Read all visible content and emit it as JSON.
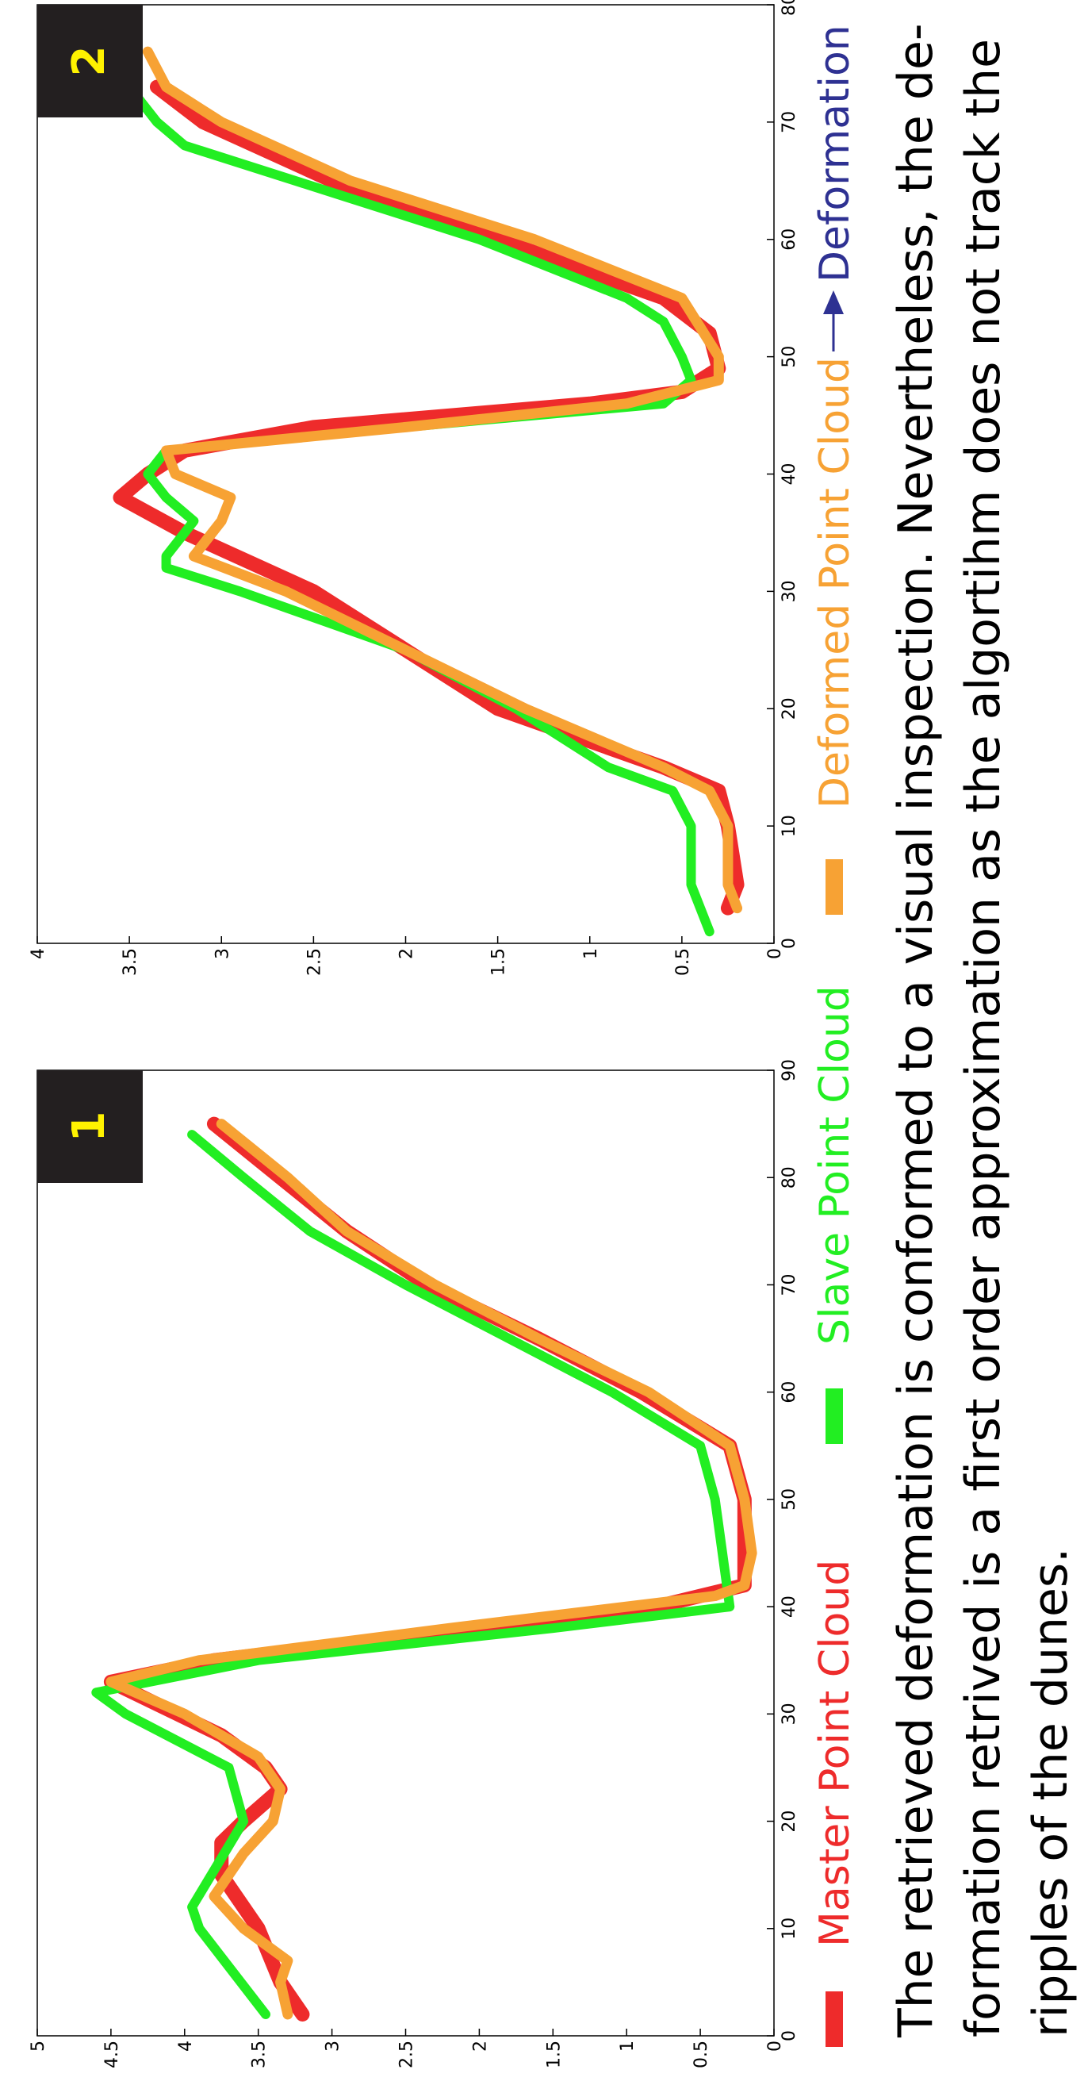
{
  "chart_data": [
    {
      "type": "line",
      "label": "1",
      "xlim": [
        0,
        90
      ],
      "xticks": [
        0,
        10,
        20,
        30,
        40,
        50,
        60,
        70,
        80,
        90
      ],
      "ylim": [
        0,
        5
      ],
      "yticks": [
        0,
        0.5,
        1,
        1.5,
        2,
        2.5,
        3,
        3.5,
        4,
        4.5,
        5
      ],
      "series": [
        {
          "name": "Master Point Cloud",
          "color": "#ee2b2b",
          "x": [
            2,
            5,
            10,
            15,
            18,
            20,
            23,
            25,
            28,
            30,
            33,
            35,
            38,
            40,
            42,
            45,
            50,
            55,
            60,
            65,
            70,
            75,
            80,
            85
          ],
          "values": [
            3.2,
            3.35,
            3.5,
            3.75,
            3.75,
            3.6,
            3.35,
            3.45,
            3.75,
            4.05,
            4.5,
            3.8,
            2.0,
            0.8,
            0.2,
            0.2,
            0.2,
            0.3,
            0.9,
            1.6,
            2.35,
            2.9,
            3.35,
            3.8
          ]
        },
        {
          "name": "Slave Point Cloud",
          "color": "#22ee22",
          "x": [
            2,
            10,
            12,
            20,
            25,
            30,
            32,
            35,
            38,
            40,
            45,
            50,
            55,
            60,
            65,
            70,
            75,
            80,
            84
          ],
          "values": [
            3.45,
            3.9,
            3.95,
            3.6,
            3.7,
            4.4,
            4.6,
            3.5,
            1.5,
            0.3,
            0.35,
            0.4,
            0.5,
            1.1,
            1.8,
            2.5,
            3.15,
            3.6,
            3.95
          ]
        },
        {
          "name": "Deformed Point Cloud",
          "color": "#f7a234",
          "x": [
            2,
            5,
            7,
            10,
            13,
            17,
            20,
            23,
            26,
            30,
            33,
            35,
            38,
            41,
            42,
            45,
            50,
            55,
            60,
            65,
            70,
            75,
            80,
            85
          ],
          "values": [
            3.3,
            3.35,
            3.3,
            3.6,
            3.8,
            3.6,
            3.4,
            3.35,
            3.5,
            4.0,
            4.5,
            3.9,
            2.2,
            0.4,
            0.2,
            0.15,
            0.2,
            0.3,
            0.85,
            1.6,
            2.3,
            2.9,
            3.3,
            3.75
          ]
        }
      ]
    },
    {
      "type": "line",
      "label": "2",
      "xlim": [
        0,
        80
      ],
      "xticks": [
        0,
        10,
        20,
        30,
        40,
        50,
        60,
        70,
        80
      ],
      "ylim": [
        0,
        4
      ],
      "yticks": [
        0,
        0.5,
        1,
        1.5,
        2,
        2.5,
        3,
        3.5,
        4
      ],
      "series": [
        {
          "color": "#ee2b2b",
          "x": [
            3,
            5,
            10,
            13,
            15,
            20,
            25,
            30,
            35,
            38,
            40,
            42,
            44,
            46,
            47,
            49,
            52,
            55,
            60,
            65,
            70,
            73
          ],
          "values": [
            0.25,
            0.2,
            0.25,
            0.3,
            0.6,
            1.5,
            2.0,
            2.5,
            3.2,
            3.55,
            3.4,
            3.2,
            2.5,
            1.0,
            0.5,
            0.3,
            0.35,
            0.6,
            1.5,
            2.4,
            3.1,
            3.35
          ]
        },
        {
          "color": "#22ee22",
          "x": [
            1,
            5,
            10,
            13,
            15,
            20,
            25,
            30,
            32,
            33,
            36,
            38,
            40,
            42,
            44,
            46,
            48,
            50,
            53,
            55,
            60,
            65,
            68,
            70,
            73
          ],
          "values": [
            0.35,
            0.45,
            0.45,
            0.55,
            0.9,
            1.4,
            2.0,
            2.9,
            3.3,
            3.3,
            3.15,
            3.3,
            3.4,
            3.3,
            2.0,
            0.6,
            0.45,
            0.5,
            0.6,
            0.8,
            1.6,
            2.6,
            3.2,
            3.35,
            3.5
          ]
        },
        {
          "color": "#f7a234",
          "x": [
            3,
            5,
            10,
            13,
            15,
            20,
            25,
            30,
            33,
            36,
            38,
            40,
            42,
            44,
            46,
            48,
            50,
            55,
            60,
            65,
            70,
            73,
            76
          ],
          "values": [
            0.2,
            0.25,
            0.25,
            0.35,
            0.6,
            1.35,
            2.0,
            2.65,
            3.15,
            3.0,
            2.95,
            3.25,
            3.3,
            2.0,
            0.8,
            0.3,
            0.3,
            0.5,
            1.3,
            2.3,
            3.0,
            3.3,
            3.4
          ]
        }
      ]
    }
  ],
  "deformation_legend": {
    "label": "Deformation",
    "color": "#2e3192"
  },
  "caption": [
    "The retrieved deformation is conformed to a visual inspection. Nevertheless, the de-",
    "formation retrived is a first order approximation as the algortihm does not track the",
    "ripples of the dunes."
  ]
}
